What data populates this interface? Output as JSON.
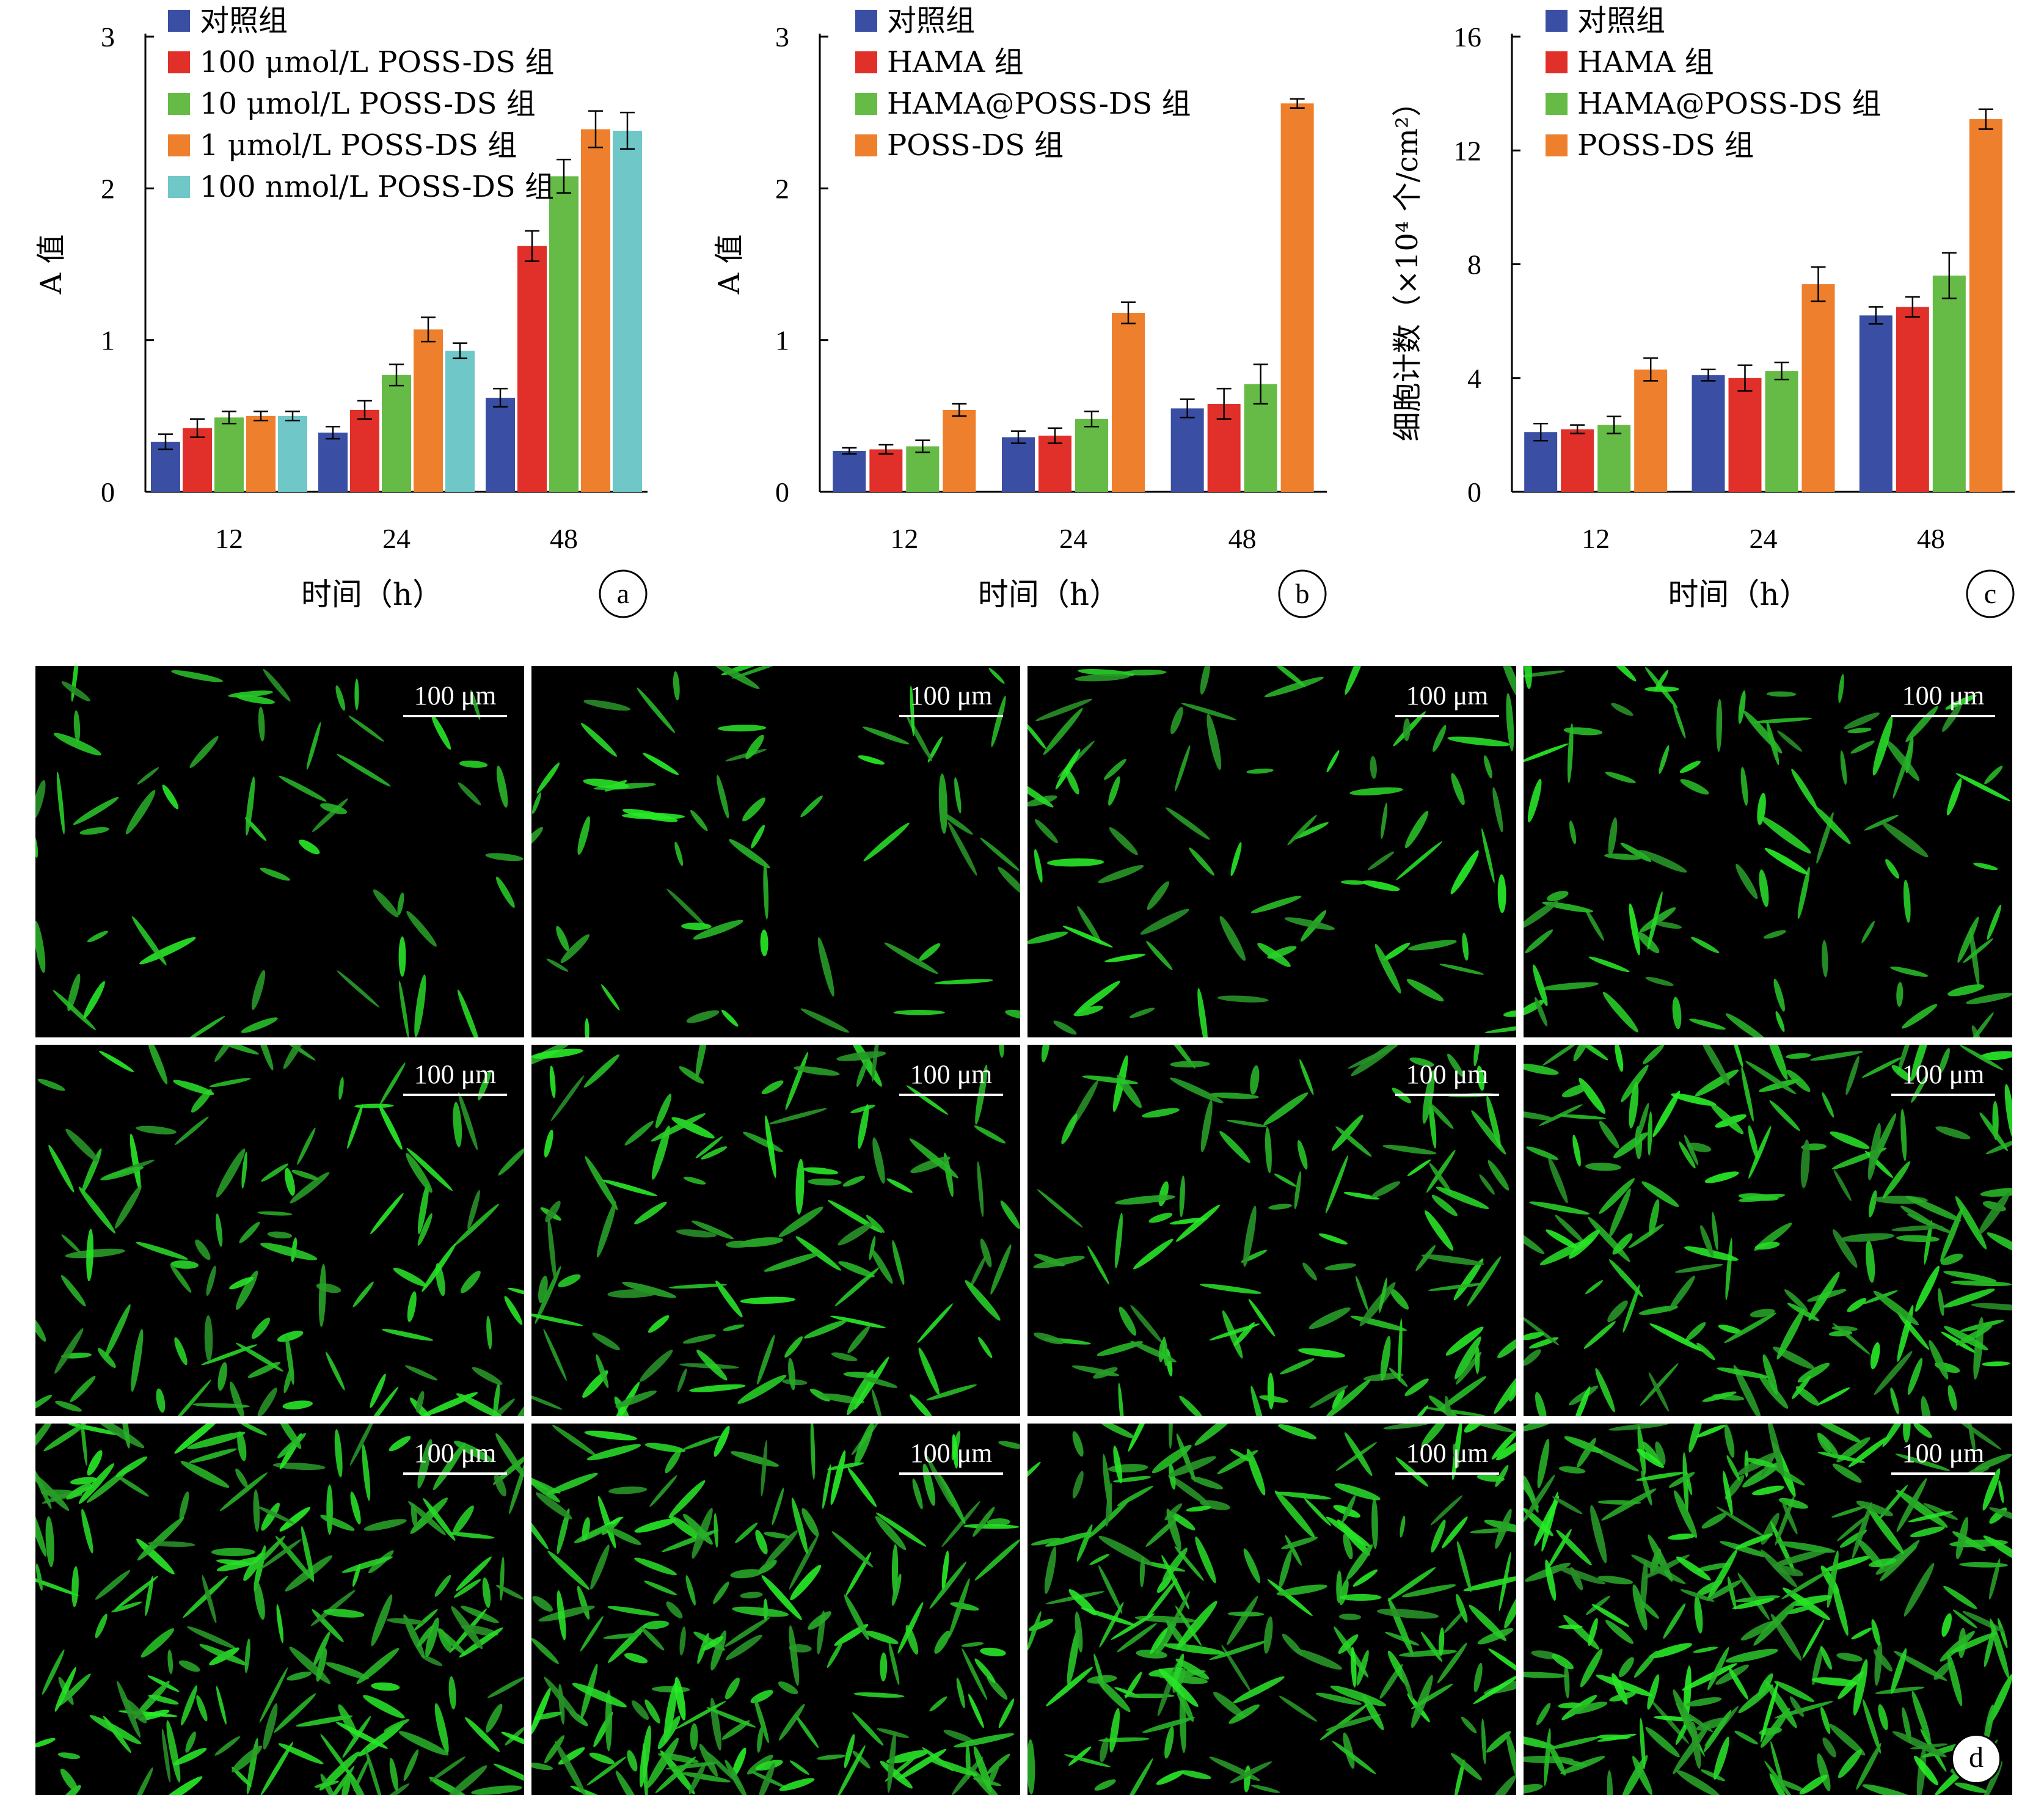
{
  "chart_data": [
    {
      "id": "a",
      "type": "bar",
      "panel_label": "a",
      "ylabel": "A 值",
      "xlabel": "时间（h）",
      "categories": [
        "12",
        "24",
        "48"
      ],
      "yticks": [
        "0",
        "1",
        "2",
        "3"
      ],
      "ylim": [
        0,
        3
      ],
      "legend_position": "top-left",
      "series": [
        {
          "name": "对照组",
          "color": "#3a4fa3",
          "values": [
            0.33,
            0.39,
            0.62
          ],
          "errors": [
            0.05,
            0.04,
            0.06
          ]
        },
        {
          "name": "100 μmol/L POSS-DS 组",
          "color": "#e03029",
          "values": [
            0.42,
            0.54,
            1.62
          ],
          "errors": [
            0.06,
            0.06,
            0.1
          ]
        },
        {
          "name": "10 μmol/L POSS-DS 组",
          "color": "#66bb46",
          "values": [
            0.49,
            0.77,
            2.08
          ],
          "errors": [
            0.04,
            0.07,
            0.11
          ]
        },
        {
          "name": "1 μmol/L POSS-DS 组",
          "color": "#ee7f2d",
          "values": [
            0.5,
            1.07,
            2.39
          ],
          "errors": [
            0.03,
            0.08,
            0.12
          ]
        },
        {
          "name": "100 nmol/L POSS-DS 组",
          "color": "#6fc7c8",
          "values": [
            0.5,
            0.93,
            2.38
          ],
          "errors": [
            0.03,
            0.05,
            0.12
          ]
        }
      ]
    },
    {
      "id": "b",
      "type": "bar",
      "panel_label": "b",
      "ylabel": "A 值",
      "xlabel": "时间（h）",
      "categories": [
        "12",
        "24",
        "48"
      ],
      "yticks": [
        "0",
        "1",
        "2",
        "3"
      ],
      "ylim": [
        0,
        3
      ],
      "legend_position": "top-left",
      "series": [
        {
          "name": "对照组",
          "color": "#3a4fa3",
          "values": [
            0.27,
            0.36,
            0.55
          ],
          "errors": [
            0.02,
            0.04,
            0.06
          ]
        },
        {
          "name": "HAMA 组",
          "color": "#e03029",
          "values": [
            0.28,
            0.37,
            0.58
          ],
          "errors": [
            0.03,
            0.05,
            0.1
          ]
        },
        {
          "name": "HAMA@POSS-DS 组",
          "color": "#66bb46",
          "values": [
            0.3,
            0.48,
            0.71
          ],
          "errors": [
            0.04,
            0.05,
            0.13
          ]
        },
        {
          "name": "POSS-DS 组",
          "color": "#ee7f2d",
          "values": [
            0.54,
            1.18,
            2.56
          ],
          "errors": [
            0.04,
            0.07,
            0.03
          ]
        }
      ]
    },
    {
      "id": "c",
      "type": "bar",
      "panel_label": "c",
      "ylabel": "细胞计数（×10⁴ 个/cm²）",
      "xlabel": "时间（h）",
      "categories": [
        "12",
        "24",
        "48"
      ],
      "yticks": [
        "0",
        "4",
        "8",
        "12",
        "16"
      ],
      "ylim": [
        0,
        16
      ],
      "legend_position": "top-left",
      "series": [
        {
          "name": "对照组",
          "color": "#3a4fa3",
          "values": [
            2.1,
            4.1,
            6.2
          ],
          "errors": [
            0.3,
            0.2,
            0.3
          ]
        },
        {
          "name": "HAMA 组",
          "color": "#e03029",
          "values": [
            2.2,
            4.0,
            6.5
          ],
          "errors": [
            0.15,
            0.45,
            0.35
          ]
        },
        {
          "name": "HAMA@POSS-DS 组",
          "color": "#66bb46",
          "values": [
            2.35,
            4.25,
            7.6
          ],
          "errors": [
            0.3,
            0.3,
            0.8
          ]
        },
        {
          "name": "POSS-DS 组",
          "color": "#ee7f2d",
          "values": [
            4.3,
            7.3,
            13.1
          ],
          "errors": [
            0.4,
            0.6,
            0.35
          ]
        }
      ]
    }
  ],
  "micrographs": {
    "panel_label": "d",
    "rows": 3,
    "cols": 4,
    "scale_label": "100 μm",
    "density": [
      [
        55,
        60,
        80,
        95
      ],
      [
        110,
        115,
        120,
        175
      ],
      [
        190,
        200,
        195,
        260
      ]
    ]
  }
}
